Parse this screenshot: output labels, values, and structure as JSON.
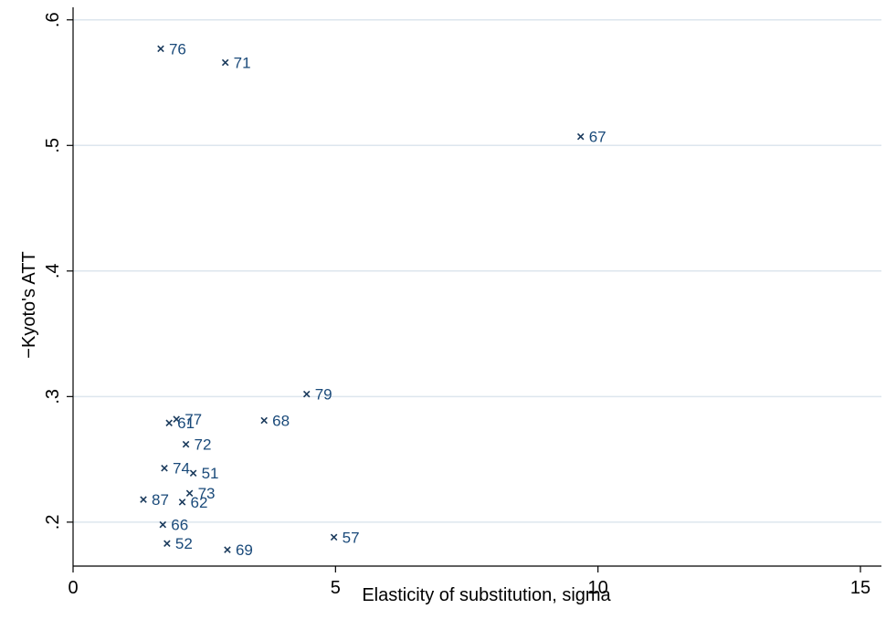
{
  "chart_data": {
    "type": "scatter",
    "title": "",
    "xlabel": "Elasticity of substitution, sigma",
    "ylabel": "−Kyoto's ATT",
    "xlim": [
      0,
      15.4
    ],
    "ylim": [
      0.165,
      0.61
    ],
    "xticks": [
      0,
      5,
      10,
      15
    ],
    "xtick_labels": [
      "0",
      "5",
      "10",
      "15"
    ],
    "yticks": [
      0.2,
      0.3,
      0.4,
      0.5,
      0.6
    ],
    "ytick_labels": [
      ".2",
      ".3",
      ".4",
      ".5",
      ".6"
    ],
    "grid": "horizontal",
    "legend": "none",
    "marker": "x",
    "colors": {
      "marker": "#1a3a5c",
      "label": "#1a4a7a",
      "grid": "#dde6ee",
      "axis": "#000000"
    },
    "points": [
      {
        "label": "76",
        "x": 1.67,
        "y": 0.577
      },
      {
        "label": "71",
        "x": 2.9,
        "y": 0.566
      },
      {
        "label": "67",
        "x": 9.67,
        "y": 0.507
      },
      {
        "label": "79",
        "x": 4.45,
        "y": 0.302
      },
      {
        "label": "77",
        "x": 1.97,
        "y": 0.282
      },
      {
        "label": "61",
        "x": 1.83,
        "y": 0.279
      },
      {
        "label": "68",
        "x": 3.64,
        "y": 0.281
      },
      {
        "label": "72",
        "x": 2.15,
        "y": 0.262
      },
      {
        "label": "74",
        "x": 1.74,
        "y": 0.243
      },
      {
        "label": "51",
        "x": 2.29,
        "y": 0.239
      },
      {
        "label": "73",
        "x": 2.22,
        "y": 0.223
      },
      {
        "label": "87",
        "x": 1.34,
        "y": 0.218
      },
      {
        "label": "62",
        "x": 2.08,
        "y": 0.216
      },
      {
        "label": "66",
        "x": 1.71,
        "y": 0.198
      },
      {
        "label": "57",
        "x": 4.97,
        "y": 0.188
      },
      {
        "label": "52",
        "x": 1.79,
        "y": 0.183
      },
      {
        "label": "69",
        "x": 2.94,
        "y": 0.178
      }
    ]
  }
}
